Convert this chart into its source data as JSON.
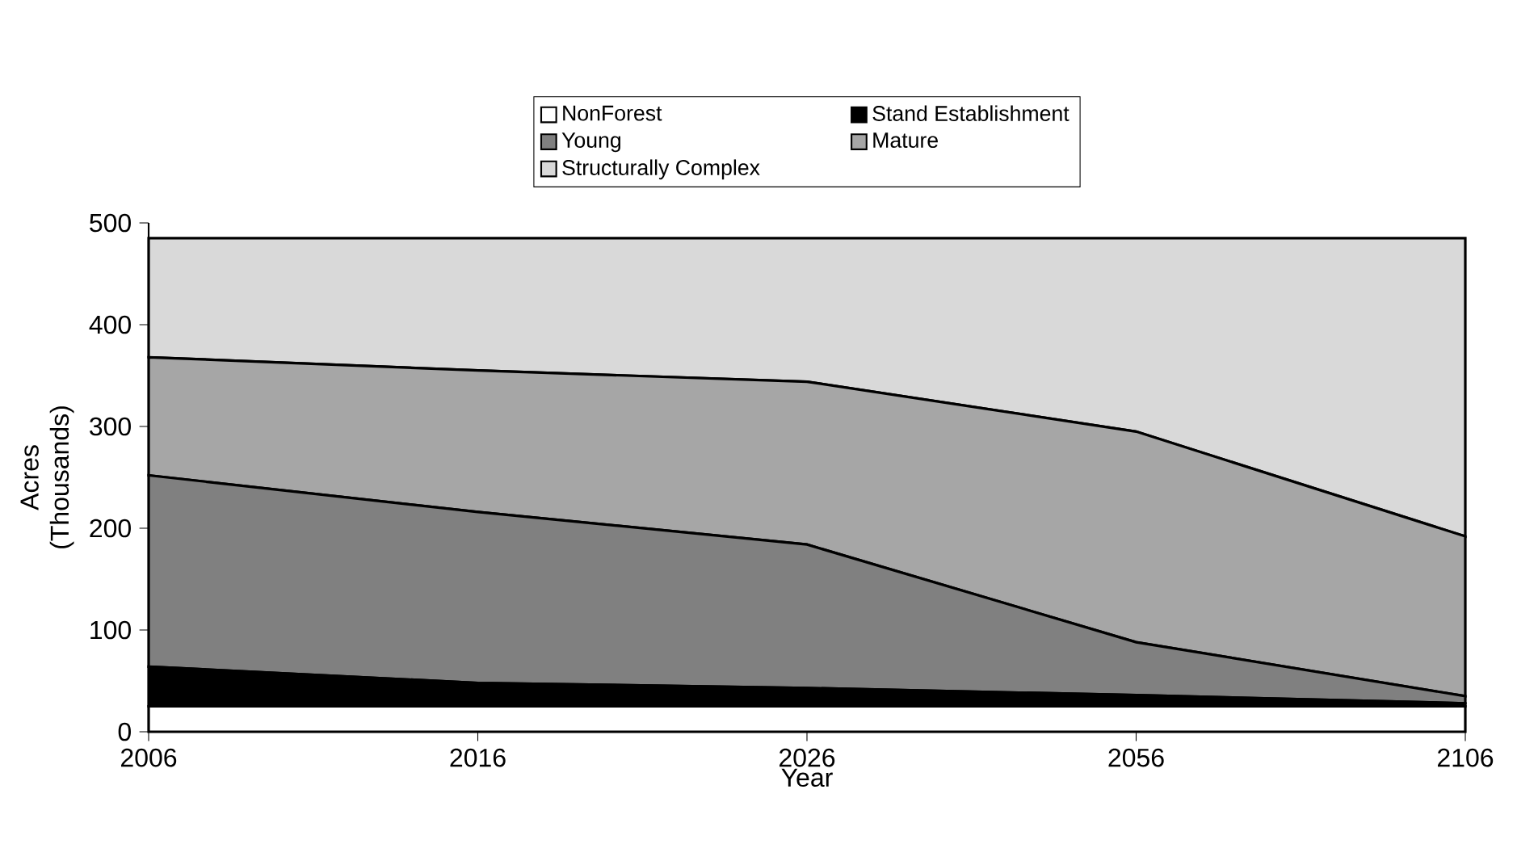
{
  "chart_data": {
    "type": "area",
    "stacked": true,
    "xlabel": "Year",
    "ylabel": "Acres (Thousands)",
    "categories": [
      "2006",
      "2016",
      "2026",
      "2056",
      "2106"
    ],
    "ylim": [
      0,
      500
    ],
    "yticks": [
      0,
      100,
      200,
      300,
      400,
      500
    ],
    "legend": "top",
    "series": [
      {
        "name": "NonForest",
        "color": "#ffffff",
        "values": [
          25,
          25,
          25,
          25,
          25
        ]
      },
      {
        "name": "Stand Establishment",
        "color": "#000000",
        "values": [
          39,
          23,
          18,
          11,
          3
        ]
      },
      {
        "name": "Young",
        "color": "#808080",
        "values": [
          188,
          168,
          141,
          52,
          7
        ]
      },
      {
        "name": "Mature",
        "color": "#a6a6a6",
        "values": [
          116,
          139,
          160,
          207,
          157
        ]
      },
      {
        "name": "Structurally Complex",
        "color": "#d9d9d9",
        "values": [
          117,
          130,
          141,
          190,
          293
        ]
      }
    ]
  }
}
